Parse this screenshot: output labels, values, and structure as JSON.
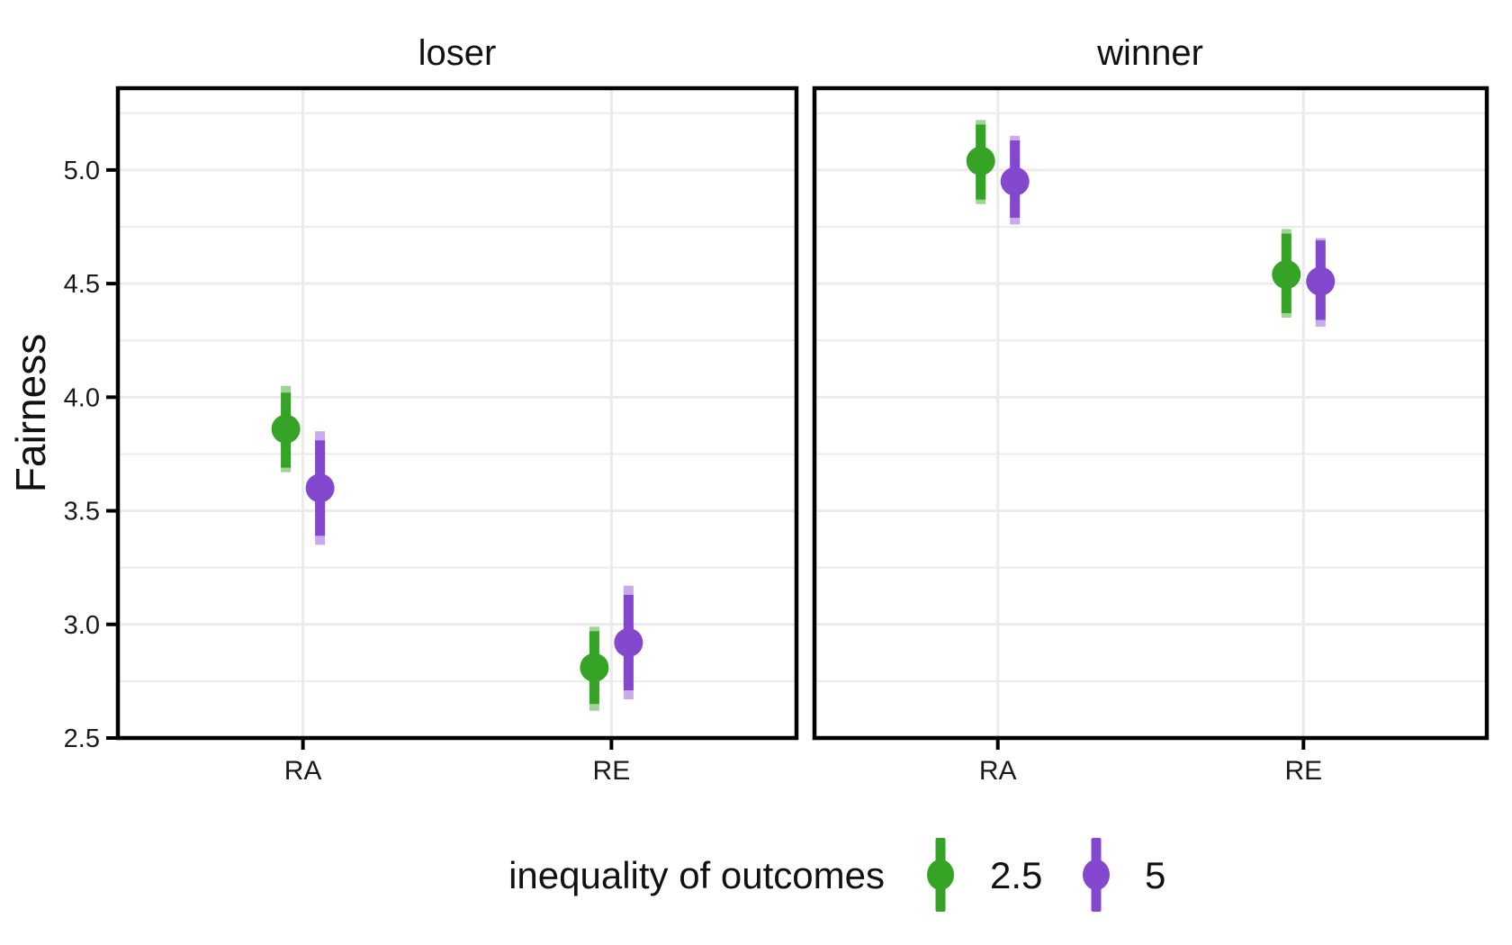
{
  "colors": {
    "background": "#ffffff",
    "grid": "#ebebeb",
    "axis_line": "#000000",
    "tick_text": "#1a1a1a",
    "title_text": "#111111"
  },
  "chart_data": {
    "type": "pointrange",
    "facet_titles": {
      "left": "loser",
      "right": "winner"
    },
    "ylabel": "Fairness",
    "ylim": [
      2.5,
      5.36
    ],
    "grid": "on",
    "legend_position": "bottom",
    "yticks": [
      {
        "label": "2.5",
        "value": 2.5
      },
      {
        "label": "3.0",
        "value": 3.0
      },
      {
        "label": "3.5",
        "value": 3.5
      },
      {
        "label": "4.0",
        "value": 4.0
      },
      {
        "label": "4.5",
        "value": 4.5
      },
      {
        "label": "5.0",
        "value": 5.0
      }
    ],
    "yminor": [
      2.75,
      3.25,
      3.75,
      4.25,
      4.75,
      5.25
    ],
    "categories": [
      "RA",
      "RE"
    ],
    "series": [
      {
        "name": "2.5",
        "color": "#35a325",
        "color_light": "#9cd492"
      },
      {
        "name": "5",
        "color": "#8448ce",
        "color_light": "#c7abea"
      }
    ],
    "legend": {
      "title": "inequality of outcomes",
      "entries": [
        {
          "label": "2.5",
          "color": "#35a325"
        },
        {
          "label": "5",
          "color": "#8448ce"
        }
      ]
    },
    "panels": [
      {
        "title": "loser",
        "points": [
          {
            "category": "RA",
            "series": "2.5",
            "mean": 3.86,
            "ci": [
              3.69,
              4.02
            ],
            "outer": [
              3.67,
              4.05
            ]
          },
          {
            "category": "RA",
            "series": "5",
            "mean": 3.6,
            "ci": [
              3.39,
              3.81
            ],
            "outer": [
              3.35,
              3.85
            ]
          },
          {
            "category": "RE",
            "series": "2.5",
            "mean": 2.81,
            "ci": [
              2.65,
              2.97
            ],
            "outer": [
              2.62,
              2.99
            ]
          },
          {
            "category": "RE",
            "series": "5",
            "mean": 2.92,
            "ci": [
              2.71,
              3.13
            ],
            "outer": [
              2.67,
              3.17
            ]
          }
        ]
      },
      {
        "title": "winner",
        "points": [
          {
            "category": "RA",
            "series": "2.5",
            "mean": 5.04,
            "ci": [
              4.87,
              5.2
            ],
            "outer": [
              4.85,
              5.22
            ]
          },
          {
            "category": "RA",
            "series": "5",
            "mean": 4.95,
            "ci": [
              4.79,
              5.13
            ],
            "outer": [
              4.76,
              5.15
            ]
          },
          {
            "category": "RE",
            "series": "2.5",
            "mean": 4.54,
            "ci": [
              4.37,
              4.72
            ],
            "outer": [
              4.35,
              4.74
            ]
          },
          {
            "category": "RE",
            "series": "5",
            "mean": 4.51,
            "ci": [
              4.34,
              4.69
            ],
            "outer": [
              4.31,
              4.7
            ]
          }
        ]
      }
    ]
  }
}
